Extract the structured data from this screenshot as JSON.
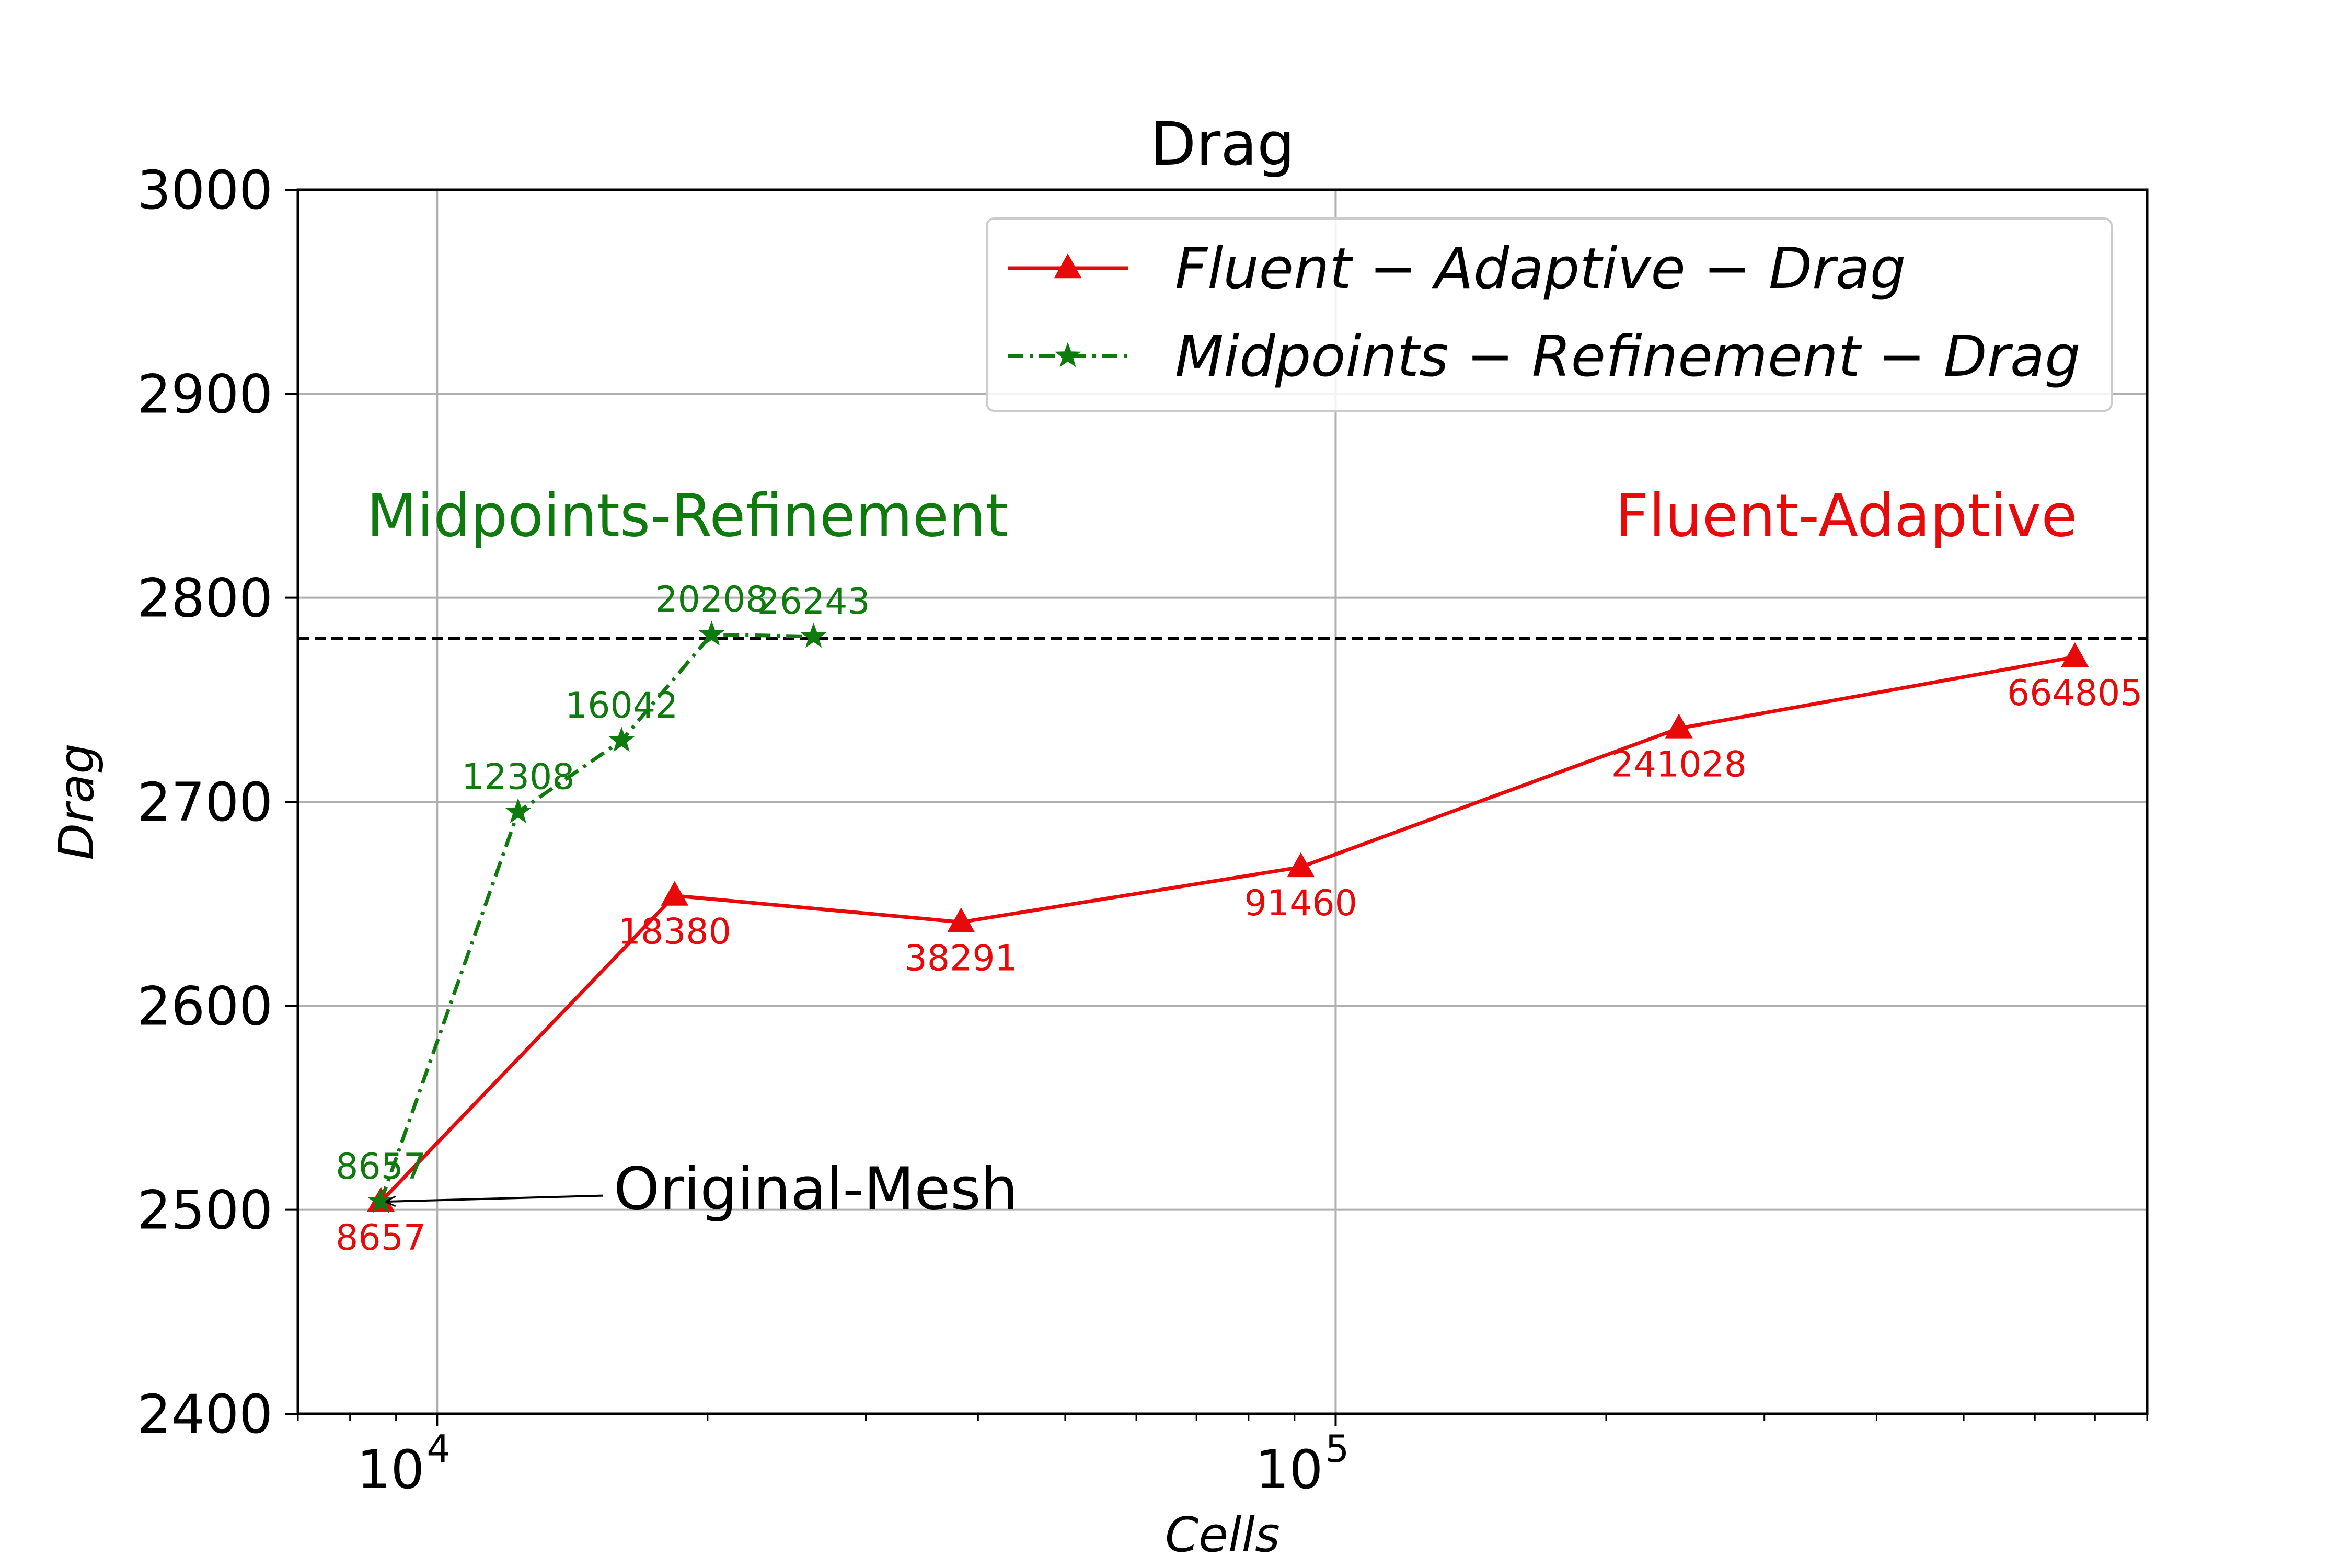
{
  "chart_data": {
    "type": "line",
    "title": "Drag",
    "xlabel": "Cells",
    "ylabel": "Drag",
    "xscale": "log",
    "xlim": [
      7000,
      800000
    ],
    "ylim": [
      2400,
      3000
    ],
    "x_ticks": [
      {
        "value": 10000,
        "base": "10",
        "exp": "4"
      },
      {
        "value": 100000,
        "base": "10",
        "exp": "5"
      }
    ],
    "y_ticks": [
      2400,
      2500,
      2600,
      2700,
      2800,
      2900,
      3000
    ],
    "y_tick_labels": [
      "2400",
      "2500",
      "2600",
      "2700",
      "2800",
      "2900",
      "3000"
    ],
    "grid": true,
    "legend_position": "top-right",
    "reference_line": {
      "y": 2780,
      "style": "dashed",
      "color": "#000000"
    },
    "series": [
      {
        "name": "Fluent − Adaptive − Drag",
        "color": "#e8090a",
        "marker": "triangle",
        "linestyle": "solid",
        "label_position": "below",
        "x": [
          8657,
          18380,
          38291,
          91460,
          241028,
          664805
        ],
        "y": [
          2504,
          2654,
          2641,
          2668,
          2736,
          2771
        ],
        "point_labels": [
          "8657",
          "18380",
          "38291",
          "91460",
          "241028",
          "664805"
        ]
      },
      {
        "name": "Midpoints − Refinement − Drag",
        "color": "#0f7b0f",
        "marker": "star",
        "linestyle": "dashdot",
        "label_position": "above",
        "x": [
          8657,
          12308,
          16042,
          20208,
          26243
        ],
        "y": [
          2504,
          2695,
          2730,
          2782,
          2781
        ],
        "point_labels": [
          "8657",
          "12308",
          "16042",
          "20208",
          "26243"
        ]
      }
    ],
    "annotations": [
      {
        "text": "Midpoints-Refinement",
        "color": "#0f7b0f",
        "x": 19000,
        "y": 2840
      },
      {
        "text": "Fluent-Adaptive",
        "color": "#e8090a",
        "x": 370000,
        "y": 2840
      },
      {
        "text": "Original-Mesh",
        "color": "#000000",
        "x": 15000,
        "y": 2510,
        "arrow_to": {
          "x": 8657,
          "y": 2504
        }
      }
    ]
  }
}
